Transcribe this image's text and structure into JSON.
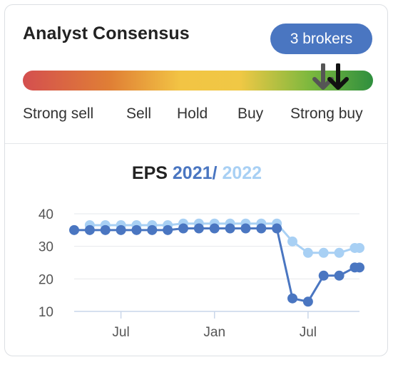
{
  "card": {
    "title": "Analyst Consensus",
    "brokers_badge": "3 brokers"
  },
  "gauge": {
    "labels": [
      "Strong sell",
      "Sell",
      "Hold",
      "Buy",
      "Strong buy"
    ],
    "colors": [
      "#d44f4f",
      "#e07f35",
      "#f2c444",
      "#7cb83e",
      "#2f8f3e"
    ],
    "markers": [
      {
        "icon": "arrow-down-icon",
        "color": "#555555",
        "value_fraction": 0.858
      },
      {
        "icon": "arrow-down-icon",
        "color": "#111111",
        "value_fraction": 0.9
      }
    ]
  },
  "eps": {
    "title_prefix": "EPS",
    "year_a": "2021",
    "separator": "/",
    "year_b": "2022",
    "color_a": "#4a76c1",
    "color_b": "#a8d0f4"
  },
  "chart_data": {
    "type": "line",
    "ylim": [
      10,
      40
    ],
    "yticks": [
      10,
      20,
      30,
      40
    ],
    "xlim": [
      0,
      18.3
    ],
    "xticks": [
      {
        "x": 3,
        "label": "Jul"
      },
      {
        "x": 9,
        "label": "Jan"
      },
      {
        "x": 15,
        "label": "Jul"
      }
    ],
    "grid": true,
    "series": [
      {
        "name": "2021",
        "color": "#4a76c1",
        "x": [
          0,
          1,
          2,
          3,
          4,
          5,
          6,
          7,
          8,
          9,
          10,
          11,
          12,
          13,
          14,
          15,
          16,
          17,
          18,
          18.3
        ],
        "values": [
          35,
          35,
          35,
          35,
          35,
          35,
          35,
          35.5,
          35.5,
          35.5,
          35.5,
          35.5,
          35.5,
          35.5,
          14,
          13,
          21,
          21,
          23.5,
          23.5
        ]
      },
      {
        "name": "2022",
        "color": "#a8d0f4",
        "x": [
          1,
          2,
          3,
          4,
          5,
          6,
          7,
          8,
          9,
          10,
          11,
          12,
          13,
          14,
          15,
          16,
          17,
          18,
          18.3
        ],
        "values": [
          36.5,
          36.5,
          36.5,
          36.5,
          36.5,
          36.5,
          37,
          37,
          37,
          37,
          37,
          37,
          37,
          31.5,
          28,
          28,
          28,
          29.5,
          29.5
        ]
      }
    ]
  }
}
